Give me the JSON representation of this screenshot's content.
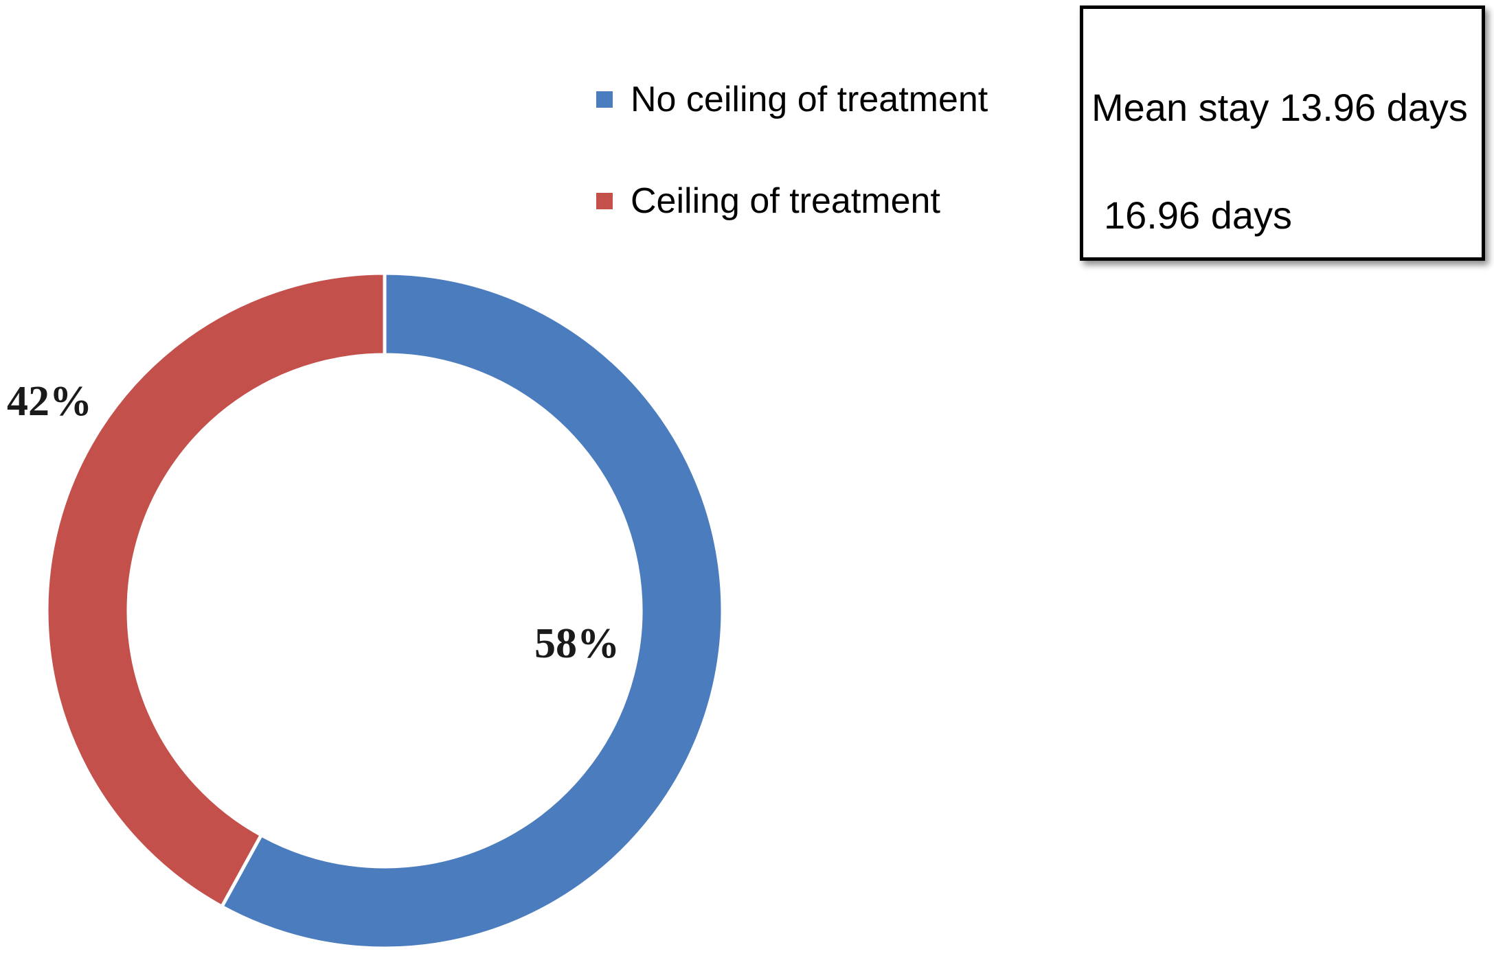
{
  "chart_data": {
    "type": "pie",
    "subtype": "doughnut",
    "title": "",
    "categories": [
      "No ceiling of treatment",
      "Ceiling of treatment"
    ],
    "values": [
      58,
      42
    ],
    "unit": "percent",
    "colors": [
      "#4B7CBE",
      "#C4504B"
    ],
    "slice_labels": [
      "58%",
      "42%"
    ],
    "start_angle_deg": 0,
    "direction": "clockwise",
    "donut_hole_ratio": 0.76,
    "grid": false,
    "legend_position": "top-right",
    "annotations": [
      "Mean stay 13.96 days",
      "16.96 days"
    ]
  },
  "legend": {
    "items": [
      {
        "label": "No ceiling of treatment",
        "color": "#4B7CBE"
      },
      {
        "label": "Ceiling of treatment",
        "color": "#C4504B"
      }
    ]
  },
  "info_box": {
    "lines": [
      "Mean stay 13.96 days",
      "16.96 days"
    ]
  }
}
